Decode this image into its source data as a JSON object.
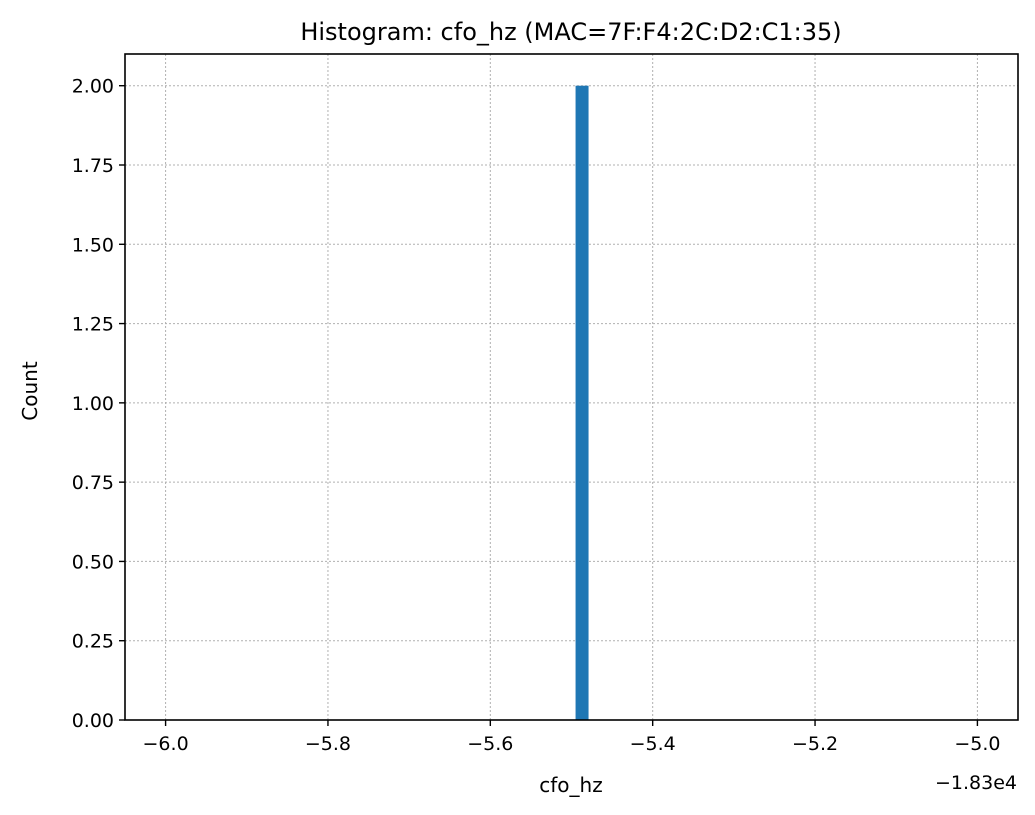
{
  "chart_data": {
    "type": "bar",
    "title": "Histogram: cfo_hz (MAC=7F:F4:2C:D2:C1:35)",
    "xlabel": "cfo_hz",
    "ylabel": "Count",
    "x_offset_label": "−1.83e4",
    "xlim": [
      -6.05,
      -4.95
    ],
    "ylim": [
      0,
      2.1
    ],
    "xticks": [
      -6.0,
      -5.8,
      -5.6,
      -5.4,
      -5.2,
      -5.0
    ],
    "xtick_labels": [
      "−6.0",
      "−5.8",
      "−5.6",
      "−5.4",
      "−5.2",
      "−5.0"
    ],
    "yticks": [
      0,
      0.25,
      0.5,
      0.75,
      1.0,
      1.25,
      1.5,
      1.75,
      2.0
    ],
    "ytick_labels": [
      "0.00",
      "0.25",
      "0.50",
      "0.75",
      "1.00",
      "1.25",
      "1.50",
      "1.75",
      "2.00"
    ],
    "grid": true,
    "bars": [
      {
        "x_start": -5.495,
        "x_end": -5.479,
        "count": 2
      }
    ],
    "bar_color": "#1f77b4"
  }
}
